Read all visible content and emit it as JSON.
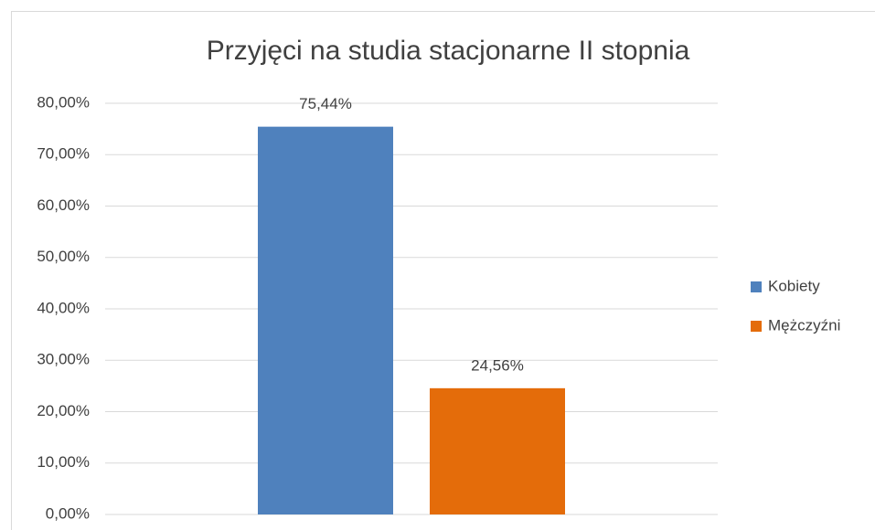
{
  "chart_data": {
    "type": "bar",
    "title": "Przyjęci na studia stacjonarne II stopnia",
    "categories": [
      null
    ],
    "series": [
      {
        "name": "Kobiety",
        "color": "#4f81bd",
        "values": [
          75.44
        ],
        "value_labels": [
          "75,44%"
        ]
      },
      {
        "name": "Mężczyźni",
        "color": "#e46c0a",
        "values": [
          24.56
        ],
        "value_labels": [
          "24,56%"
        ]
      }
    ],
    "ylim": [
      0,
      80
    ],
    "yticks": [
      {
        "value": 0,
        "label": "0,00%"
      },
      {
        "value": 10,
        "label": "10,00%"
      },
      {
        "value": 20,
        "label": "20,00%"
      },
      {
        "value": 30,
        "label": "30,00%"
      },
      {
        "value": 40,
        "label": "40,00%"
      },
      {
        "value": 50,
        "label": "50,00%"
      },
      {
        "value": 60,
        "label": "60,00%"
      },
      {
        "value": 70,
        "label": "70,00%"
      },
      {
        "value": 80,
        "label": "80,00%"
      }
    ],
    "grid": true,
    "legend": "right"
  }
}
